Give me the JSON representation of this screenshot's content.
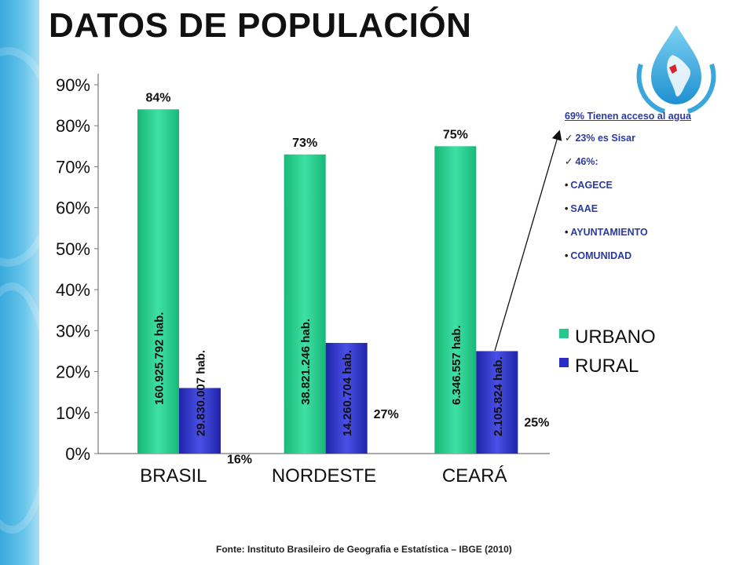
{
  "title": "DATOS DE POPULACIÓN",
  "colors": {
    "urbano": "#22c98a",
    "rural": "#2a2fc4",
    "bar_label": "#111111",
    "list_text": "#2a3aa0"
  },
  "side_list": {
    "header": "69% Tienen acceso al agua",
    "items": [
      {
        "marker": "✓",
        "text": "23% es Sisar"
      },
      {
        "marker": "✓",
        "text": "46%:"
      },
      {
        "marker": "•",
        "text": "CAGECE"
      },
      {
        "marker": "•",
        "text": "SAAE"
      },
      {
        "marker": "•",
        "text": "AYUNTAMIENTO"
      },
      {
        "marker": "•",
        "text": "COMUNIDAD"
      }
    ]
  },
  "source": "Fonte: Instituto Brasileiro de Geografia e Estatística – IBGE (2010)",
  "logo_icon": "water-drop-map-icon",
  "chart_data": {
    "type": "bar",
    "categories": [
      "BRASIL",
      "NORDESTE",
      "CEARÁ"
    ],
    "series": [
      {
        "name": "URBANO",
        "values": [
          84,
          73,
          75
        ],
        "value_labels": [
          "84%",
          "73%",
          "75%"
        ],
        "population_labels": [
          "160.925.792 hab.",
          "38.821.246 hab.",
          "6.346.557 hab."
        ]
      },
      {
        "name": "RURAL",
        "values": [
          16,
          27,
          25
        ],
        "value_labels": [
          "16%",
          "27%",
          "25%"
        ],
        "population_labels": [
          "29.830.007 hab.",
          "14.260.704 hab.",
          "2.105.824 hab."
        ]
      }
    ],
    "ylim": [
      0,
      90
    ],
    "yticks": [
      0,
      10,
      20,
      30,
      40,
      50,
      60,
      70,
      80,
      90
    ],
    "ytick_labels": [
      "0%",
      "10%",
      "20%",
      "30%",
      "40%",
      "50%",
      "60%",
      "70%",
      "80%",
      "90%"
    ],
    "xlabel": "",
    "ylabel": "",
    "grid": false,
    "legend": "right"
  }
}
